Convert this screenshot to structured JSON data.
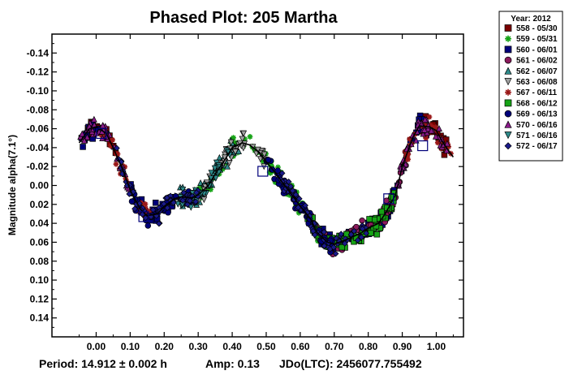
{
  "chart_data": {
    "type": "scatter",
    "title": "Phased Plot: 205 Martha",
    "ylabel": "Magnitude alpha(7.1°)",
    "xlabel": "",
    "xlim": [
      -0.13,
      1.08
    ],
    "ylim": [
      -0.16,
      0.16
    ],
    "y_inverted": true,
    "x_ticks": [
      "0.00",
      "0.10",
      "0.20",
      "0.30",
      "0.40",
      "0.50",
      "0.60",
      "0.70",
      "0.80",
      "0.90",
      "1.00"
    ],
    "y_ticks": [
      "-0.14",
      "-0.12",
      "-0.10",
      "-0.08",
      "-0.06",
      "-0.04",
      "-0.02",
      "0.00",
      "0.02",
      "0.04",
      "0.06",
      "0.08",
      "0.10",
      "0.12",
      "0.14"
    ],
    "legend_title": "Year: 2012",
    "legend_position": "right",
    "series": [
      {
        "name": "558 - 05/30",
        "marker": "square",
        "color": "#7a0000",
        "ranges": [
          [
            -0.04,
            0.06
          ],
          [
            0.96,
            1.05
          ]
        ]
      },
      {
        "name": "559 - 05/31",
        "marker": "star",
        "color": "#16a316",
        "ranges": [
          [
            0.3,
            0.66
          ]
        ]
      },
      {
        "name": "560 - 06/01",
        "marker": "square",
        "color": "#00007a",
        "ranges": [
          [
            -0.05,
            0.03
          ],
          [
            0.1,
            0.24
          ],
          [
            0.66,
            0.98
          ]
        ]
      },
      {
        "name": "561 - 06/02",
        "marker": "circle",
        "color": "#8a1a5c",
        "ranges": [
          [
            0.62,
            0.92
          ]
        ]
      },
      {
        "name": "562 - 06/07",
        "marker": "triangle",
        "color": "#2e8b8b",
        "ranges": [
          [
            0.22,
            0.42
          ]
        ]
      },
      {
        "name": "563 - 06/08",
        "marker": "triangle-down",
        "color": "#a0a0a0",
        "ranges": [
          [
            0.25,
            0.5
          ]
        ]
      },
      {
        "name": "567 - 06/11",
        "marker": "star",
        "color": "#9a1818",
        "ranges": [
          [
            0.0,
            0.16
          ],
          [
            0.9,
            1.05
          ]
        ]
      },
      {
        "name": "568 - 06/12",
        "marker": "square",
        "color": "#16a316",
        "ranges": [
          [
            0.62,
            0.88
          ]
        ]
      },
      {
        "name": "569 - 06/13",
        "marker": "circle",
        "color": "#00007a",
        "ranges": [
          [
            0.1,
            0.3
          ],
          [
            0.5,
            0.7
          ]
        ]
      },
      {
        "name": "570 - 06/16",
        "marker": "triangle",
        "color": "#8a1a8a",
        "ranges": [
          [
            -0.05,
            0.1
          ],
          [
            0.88,
            1.04
          ]
        ]
      },
      {
        "name": "571 - 06/16",
        "marker": "triangle-down",
        "color": "#2e8b8b",
        "ranges": [
          [
            0.24,
            0.4
          ]
        ]
      },
      {
        "name": "572 - 06/17",
        "marker": "diamond",
        "color": "#1a1a8a",
        "ranges": [
          [
            0.06,
            0.3
          ],
          [
            0.54,
            0.8
          ]
        ]
      }
    ],
    "fit_curve": {
      "x": [
        -0.05,
        -0.02,
        0.0,
        0.03,
        0.05,
        0.08,
        0.1,
        0.13,
        0.15,
        0.18,
        0.2,
        0.23,
        0.25,
        0.28,
        0.3,
        0.33,
        0.35,
        0.38,
        0.4,
        0.43,
        0.45,
        0.48,
        0.5,
        0.53,
        0.55,
        0.58,
        0.6,
        0.63,
        0.65,
        0.68,
        0.7,
        0.73,
        0.75,
        0.78,
        0.8,
        0.83,
        0.85,
        0.88,
        0.9,
        0.93,
        0.95,
        0.98,
        1.0,
        1.02,
        1.05
      ],
      "y": [
        -0.045,
        -0.06,
        -0.062,
        -0.055,
        -0.04,
        -0.015,
        0.005,
        0.025,
        0.032,
        0.03,
        0.022,
        0.014,
        0.012,
        0.013,
        0.01,
        0.0,
        -0.012,
        -0.028,
        -0.04,
        -0.045,
        -0.043,
        -0.035,
        -0.025,
        -0.012,
        -0.002,
        0.012,
        0.022,
        0.035,
        0.05,
        0.06,
        0.062,
        0.058,
        0.055,
        0.05,
        0.045,
        0.04,
        0.03,
        0.01,
        -0.02,
        -0.05,
        -0.063,
        -0.062,
        -0.058,
        -0.045,
        -0.03
      ]
    },
    "highlight_boxes": [
      [
        0.015,
        -0.055
      ],
      [
        0.14,
        0.033
      ],
      [
        0.49,
        -0.015
      ],
      [
        0.86,
        0.014
      ],
      [
        0.96,
        -0.042
      ]
    ]
  },
  "footer": {
    "period": "Period: 14.912 ± 0.002 h",
    "amp": "Amp: 0.13",
    "jdo": "JDo(LTC): 2456077.755492"
  }
}
